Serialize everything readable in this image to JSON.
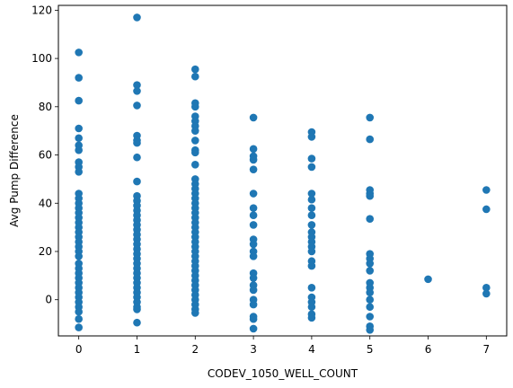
{
  "chart_data": {
    "type": "scatter",
    "xlabel": "CODEV_1050_WELL_COUNT",
    "ylabel": "Avg Pump Difference",
    "xlim": [
      -0.35,
      7.35
    ],
    "ylim": [
      -15,
      122
    ],
    "xticks": [
      0,
      1,
      2,
      3,
      4,
      5,
      6,
      7
    ],
    "yticks": [
      0,
      20,
      40,
      60,
      80,
      100,
      120
    ],
    "grid": false,
    "marker_color": "#1f77b4",
    "series": [
      {
        "points": [
          [
            0,
            102.5
          ],
          [
            0,
            92
          ],
          [
            0,
            82.5
          ],
          [
            0,
            71
          ],
          [
            0,
            67
          ],
          [
            0,
            64
          ],
          [
            0,
            62
          ],
          [
            0,
            57
          ],
          [
            0,
            55
          ],
          [
            0,
            53
          ],
          [
            0,
            44
          ],
          [
            0,
            42
          ],
          [
            0,
            40
          ],
          [
            0,
            38
          ],
          [
            0,
            36
          ],
          [
            0,
            34
          ],
          [
            0,
            32
          ],
          [
            0,
            30
          ],
          [
            0,
            28
          ],
          [
            0,
            26
          ],
          [
            0,
            24
          ],
          [
            0,
            22
          ],
          [
            0,
            20
          ],
          [
            0,
            18
          ],
          [
            0,
            15
          ],
          [
            0,
            13
          ],
          [
            0,
            11
          ],
          [
            0,
            9
          ],
          [
            0,
            7
          ],
          [
            0,
            5
          ],
          [
            0,
            3
          ],
          [
            0,
            1
          ],
          [
            0,
            -1
          ],
          [
            0,
            -3
          ],
          [
            0,
            -5
          ],
          [
            0,
            -8
          ],
          [
            0,
            -11.5
          ],
          [
            1,
            117
          ],
          [
            1,
            89
          ],
          [
            1,
            86.5
          ],
          [
            1,
            80.5
          ],
          [
            1,
            68
          ],
          [
            1,
            66
          ],
          [
            1,
            65
          ],
          [
            1,
            59
          ],
          [
            1,
            49
          ],
          [
            1,
            43
          ],
          [
            1,
            41
          ],
          [
            1,
            39
          ],
          [
            1,
            37
          ],
          [
            1,
            35
          ],
          [
            1,
            33
          ],
          [
            1,
            31
          ],
          [
            1,
            29
          ],
          [
            1,
            27
          ],
          [
            1,
            25
          ],
          [
            1,
            23
          ],
          [
            1,
            21
          ],
          [
            1,
            19
          ],
          [
            1,
            17
          ],
          [
            1,
            15
          ],
          [
            1,
            13
          ],
          [
            1,
            11
          ],
          [
            1,
            9
          ],
          [
            1,
            7
          ],
          [
            1,
            5
          ],
          [
            1,
            3
          ],
          [
            1,
            1
          ],
          [
            1,
            -1
          ],
          [
            1,
            -3
          ],
          [
            1,
            -4
          ],
          [
            1,
            -9.5
          ],
          [
            2,
            95.5
          ],
          [
            2,
            92.5
          ],
          [
            2,
            81.5
          ],
          [
            2,
            80
          ],
          [
            2,
            76
          ],
          [
            2,
            74
          ],
          [
            2,
            72
          ],
          [
            2,
            70
          ],
          [
            2,
            66
          ],
          [
            2,
            62
          ],
          [
            2,
            61
          ],
          [
            2,
            56
          ],
          [
            2,
            50
          ],
          [
            2,
            48
          ],
          [
            2,
            46
          ],
          [
            2,
            44
          ],
          [
            2,
            42
          ],
          [
            2,
            40
          ],
          [
            2,
            38
          ],
          [
            2,
            36
          ],
          [
            2,
            34
          ],
          [
            2,
            32
          ],
          [
            2,
            30
          ],
          [
            2,
            28
          ],
          [
            2,
            26
          ],
          [
            2,
            24
          ],
          [
            2,
            22
          ],
          [
            2,
            20
          ],
          [
            2,
            18
          ],
          [
            2,
            16
          ],
          [
            2,
            14
          ],
          [
            2,
            12
          ],
          [
            2,
            10
          ],
          [
            2,
            8
          ],
          [
            2,
            6
          ],
          [
            2,
            4
          ],
          [
            2,
            2
          ],
          [
            2,
            0
          ],
          [
            2,
            -2
          ],
          [
            2,
            -4
          ],
          [
            2,
            -5.5
          ],
          [
            3,
            75.5
          ],
          [
            3,
            62.5
          ],
          [
            3,
            59.5
          ],
          [
            3,
            58
          ],
          [
            3,
            54
          ],
          [
            3,
            44
          ],
          [
            3,
            38
          ],
          [
            3,
            35
          ],
          [
            3,
            31
          ],
          [
            3,
            25
          ],
          [
            3,
            23
          ],
          [
            3,
            20
          ],
          [
            3,
            18
          ],
          [
            3,
            11
          ],
          [
            3,
            9
          ],
          [
            3,
            6
          ],
          [
            3,
            4
          ],
          [
            3,
            0
          ],
          [
            3,
            -2
          ],
          [
            3,
            -7
          ],
          [
            3,
            -8
          ],
          [
            3,
            -12
          ],
          [
            4,
            69.5
          ],
          [
            4,
            67.5
          ],
          [
            4,
            58.5
          ],
          [
            4,
            55
          ],
          [
            4,
            44
          ],
          [
            4,
            41.5
          ],
          [
            4,
            38
          ],
          [
            4,
            35
          ],
          [
            4,
            31
          ],
          [
            4,
            28
          ],
          [
            4,
            26
          ],
          [
            4,
            24
          ],
          [
            4,
            22
          ],
          [
            4,
            20
          ],
          [
            4,
            16
          ],
          [
            4,
            14
          ],
          [
            4,
            5
          ],
          [
            4,
            1
          ],
          [
            4,
            -1
          ],
          [
            4,
            -3
          ],
          [
            4,
            -6
          ],
          [
            4,
            -7.5
          ],
          [
            5,
            75.5
          ],
          [
            5,
            66.5
          ],
          [
            5,
            45.5
          ],
          [
            5,
            44
          ],
          [
            5,
            43
          ],
          [
            5,
            33.5
          ],
          [
            5,
            19
          ],
          [
            5,
            17
          ],
          [
            5,
            15
          ],
          [
            5,
            12
          ],
          [
            5,
            7
          ],
          [
            5,
            5
          ],
          [
            5,
            3
          ],
          [
            5,
            0
          ],
          [
            5,
            -3
          ],
          [
            5,
            -7
          ],
          [
            5,
            -11
          ],
          [
            5,
            -12.5
          ],
          [
            6,
            8.5
          ],
          [
            7,
            45.5
          ],
          [
            7,
            37.5
          ],
          [
            7,
            5
          ],
          [
            7,
            2.5
          ]
        ]
      }
    ]
  }
}
